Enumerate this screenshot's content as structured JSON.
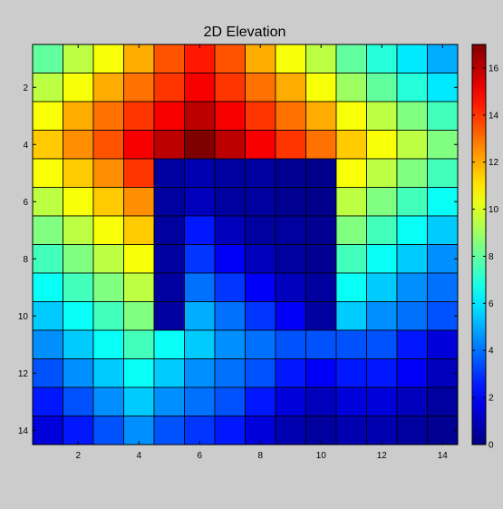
{
  "window": {
    "background": "#cccccc"
  },
  "chart_data": {
    "type": "heatmap",
    "title": "2D Elevation",
    "xlabel": "",
    "ylabel": "",
    "colormap": "jet",
    "clim": [
      0,
      17
    ],
    "x_range": [
      1,
      14
    ],
    "y_range": [
      1,
      14
    ],
    "y_axis_direction": "top-to-bottom",
    "grid": "cell edges drawn in black",
    "x_tick_values": [
      2,
      4,
      6,
      8,
      10,
      12,
      14
    ],
    "x_tick_labels": [
      "2",
      "4",
      "6",
      "8",
      "10",
      "12",
      "14"
    ],
    "y_tick_values": [
      2,
      4,
      6,
      8,
      10,
      12,
      14
    ],
    "y_tick_labels": [
      "2",
      "4",
      "6",
      "8",
      "10",
      "12",
      "14"
    ],
    "colorbar": {
      "placement": "right",
      "tick_values": [
        0,
        2,
        4,
        6,
        8,
        10,
        12,
        14,
        16
      ],
      "tick_labels": [
        "0",
        "2",
        "4",
        "6",
        "8",
        "10",
        "12",
        "14",
        "16"
      ]
    },
    "values": [
      [
        8,
        9.5,
        10.5,
        12,
        13.5,
        14.5,
        13.5,
        12,
        10.5,
        9.5,
        8,
        7,
        6,
        5
      ],
      [
        9.5,
        10.5,
        12,
        13,
        14,
        15,
        14,
        13,
        12,
        10.5,
        9,
        8,
        7,
        6
      ],
      [
        10.5,
        12,
        13,
        14,
        15,
        16,
        15,
        14,
        13,
        12,
        10.5,
        9.5,
        8.5,
        7.5
      ],
      [
        11.5,
        12.5,
        13.5,
        15,
        16,
        17,
        16,
        15,
        14,
        13,
        11.5,
        10.5,
        9.5,
        8.5
      ],
      [
        10.5,
        11.5,
        12.5,
        14,
        0.5,
        0.8,
        0.5,
        0.5,
        0.3,
        0.2,
        10.5,
        9.5,
        8.5,
        7.5
      ],
      [
        9.5,
        10.5,
        11.5,
        12.5,
        0.5,
        1,
        0.5,
        0.5,
        0.3,
        0.2,
        9.5,
        8.5,
        7.5,
        6.5
      ],
      [
        8.5,
        9.5,
        10.5,
        11.5,
        0.5,
        2.5,
        1,
        0.5,
        0.5,
        0.3,
        8.5,
        7.5,
        6.5,
        5.5
      ],
      [
        7.5,
        8.5,
        9.5,
        10.5,
        0.5,
        3,
        2,
        1,
        0.5,
        0.3,
        7.5,
        6.5,
        5.5,
        4.5
      ],
      [
        6.5,
        7.5,
        8.5,
        9.5,
        0.5,
        4,
        3,
        2,
        1,
        0.5,
        6.5,
        5.5,
        4.5,
        4
      ],
      [
        5.5,
        6.5,
        7.5,
        8.5,
        0.5,
        5,
        4,
        3,
        2,
        0.5,
        5.5,
        4.5,
        4,
        3.5
      ],
      [
        4.5,
        5.5,
        6.5,
        7.5,
        6.5,
        5.5,
        4.5,
        4,
        3.5,
        3.5,
        3.5,
        3.5,
        2.5,
        1.5
      ],
      [
        3.5,
        4.5,
        5.5,
        6.5,
        5.5,
        4.5,
        4,
        3.5,
        2.5,
        2,
        2.5,
        2.5,
        2,
        1
      ],
      [
        2.5,
        3.5,
        4.5,
        5.5,
        4.5,
        4,
        3.5,
        2.5,
        1.5,
        1,
        1.5,
        1.5,
        1,
        0.5
      ],
      [
        1.5,
        2.5,
        3.5,
        4.5,
        3.5,
        3,
        2.5,
        1.5,
        0.8,
        0.5,
        0.8,
        0.8,
        0.5,
        0.3
      ]
    ]
  }
}
